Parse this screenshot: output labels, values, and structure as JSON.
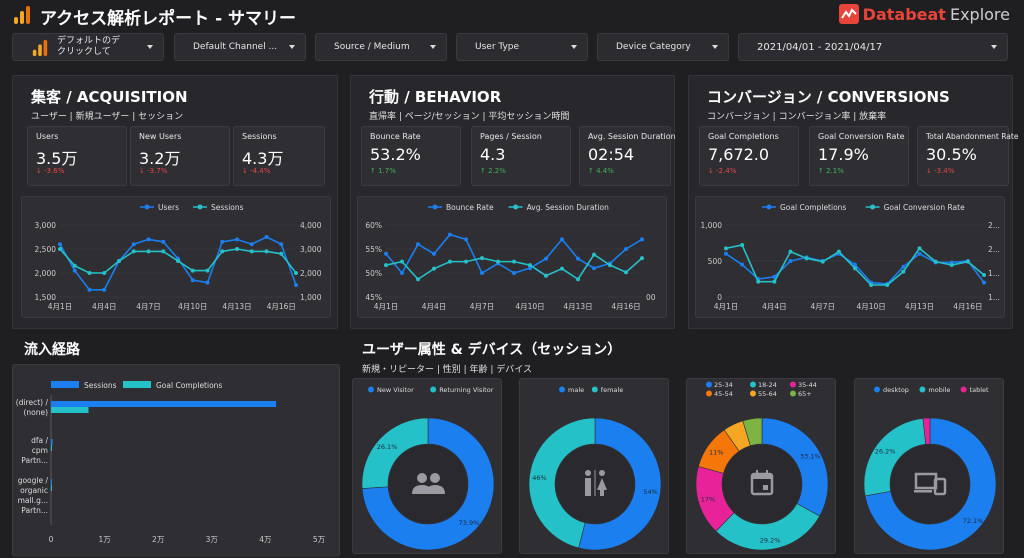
{
  "header": {
    "title": "アクセス解析レポート - サマリー",
    "brand_name": "Databeat",
    "brand_suffix": "Explore"
  },
  "filters": [
    {
      "label1": "デフォルトのデ",
      "label2": "クリックして"
    },
    {
      "label": "Default Channel ..."
    },
    {
      "label": "Source / Medium"
    },
    {
      "label": "User Type"
    },
    {
      "label": "Device Category"
    },
    {
      "label": "2021/04/01 - 2021/04/17"
    }
  ],
  "colors": {
    "blue": "#1b7ff0",
    "teal": "#25c1c8",
    "neg": "#e64848",
    "pos": "#41b25a",
    "accent": "#f5a623"
  },
  "acquisition": {
    "title": "集客 / ACQUISITION",
    "subtitle": "ユーザー | 新規ユーザー | セッション",
    "kpis": [
      {
        "label": "Users",
        "value": "3.5万",
        "delta": "-3.6%",
        "dir": "neg"
      },
      {
        "label": "New Users",
        "value": "3.2万",
        "delta": "-3.7%",
        "dir": "neg"
      },
      {
        "label": "Sessions",
        "value": "4.3万",
        "delta": "-4.4%",
        "dir": "neg"
      }
    ]
  },
  "behavior": {
    "title": "行動 / BEHAVIOR",
    "subtitle": "直帰率 | ページ/セッション | 平均セッション時間",
    "kpis": [
      {
        "label": "Bounce Rate",
        "value": "53.2%",
        "delta": "1.7%",
        "dir": "pos"
      },
      {
        "label": "Pages / Session",
        "value": "4.3",
        "delta": "2.2%",
        "dir": "pos"
      },
      {
        "label": "Avg. Session Duration",
        "value": "02:54",
        "delta": "4.4%",
        "dir": "pos"
      }
    ]
  },
  "conversions": {
    "title": "コンバージョン / CONVERSIONS",
    "subtitle": "コンバージョン | コンバージョン率 | 放棄率",
    "kpis": [
      {
        "label": "Goal Completions",
        "value": "7,672.0",
        "delta": "-2.4%",
        "dir": "neg"
      },
      {
        "label": "Goal Conversion Rate",
        "value": "17.9%",
        "delta": "2.1%",
        "dir": "pos"
      },
      {
        "label": "Total Abandonment Rate",
        "value": "30.5%",
        "delta": "-3.4%",
        "dir": "neg"
      }
    ]
  },
  "traffic": {
    "title": "流入経路"
  },
  "demographics": {
    "title": "ユーザー属性 & デバイス（セッション）",
    "subtitle": "新規・リピーター | 性別 | 年齢 | デバイス"
  },
  "chart_data": [
    {
      "id": "acq",
      "type": "line",
      "x": [
        "4月1日",
        "4月2日",
        "4月3日",
        "4月4日",
        "4月5日",
        "4月6日",
        "4月7日",
        "4月8日",
        "4月9日",
        "4月10日",
        "4月11日",
        "4月12日",
        "4月13日",
        "4月14日",
        "4月15日",
        "4月16日",
        "4月17日"
      ],
      "x_ticks": [
        "4月1日",
        "4月4日",
        "4月7日",
        "4月10日",
        "4月13日",
        "4月16日"
      ],
      "series": [
        {
          "name": "Users",
          "axis": "left",
          "values": [
            2600,
            2050,
            1650,
            1650,
            2250,
            2600,
            2700,
            2650,
            2300,
            1850,
            1800,
            2650,
            2700,
            2600,
            2750,
            2600,
            1750
          ]
        },
        {
          "name": "Sessions",
          "axis": "right",
          "values": [
            3000,
            2300,
            2000,
            2000,
            2500,
            2900,
            2900,
            2900,
            2500,
            2100,
            2100,
            2900,
            3000,
            2900,
            2900,
            2800,
            2000
          ]
        }
      ],
      "ylim_left": [
        1500,
        3000
      ],
      "yticks_left": [
        "3,000",
        "2,500",
        "2,000",
        "1,500"
      ],
      "ylim_right": [
        1000,
        4000
      ],
      "yticks_right": [
        "4,000",
        "3,000",
        "2,000",
        "1,000"
      ]
    },
    {
      "id": "beh",
      "type": "line",
      "x": [
        "4月1日",
        "4月2日",
        "4月3日",
        "4月4日",
        "4月5日",
        "4月6日",
        "4月7日",
        "4月8日",
        "4月9日",
        "4月10日",
        "4月11日",
        "4月12日",
        "4月13日",
        "4月14日",
        "4月15日",
        "4月16日",
        "4月17日"
      ],
      "x_ticks": [
        "4月1日",
        "4月4日",
        "4月7日",
        "4月10日",
        "4月13日",
        "4月16日"
      ],
      "series": [
        {
          "name": "Bounce Rate",
          "axis": "left",
          "values": [
            54,
            50,
            56,
            54,
            58,
            57,
            50,
            52,
            50,
            51,
            53,
            57,
            53,
            51,
            52,
            55,
            57
          ]
        },
        {
          "name": "Avg. Session Duration",
          "axis": "right",
          "values": [
            0.55,
            0.56,
            0.51,
            0.54,
            0.56,
            0.56,
            0.57,
            0.56,
            0.56,
            0.55,
            0.52,
            0.54,
            0.51,
            0.58,
            0.55,
            0.53,
            0.57
          ]
        }
      ],
      "ylim_left": [
        45,
        60
      ],
      "yticks_left": [
        "60%",
        "55%",
        "50%",
        "45%"
      ],
      "yticks_right": [
        "00"
      ]
    },
    {
      "id": "conv",
      "type": "line",
      "x": [
        "4月1日",
        "4月2日",
        "4月3日",
        "4月4日",
        "4月5日",
        "4月6日",
        "4月7日",
        "4月8日",
        "4月9日",
        "4月10日",
        "4月11日",
        "4月12日",
        "4月13日",
        "4月14日",
        "4月15日",
        "4月16日",
        "4月17日"
      ],
      "x_ticks": [
        "4月1日",
        "4月4日",
        "4月7日",
        "4月10日",
        "4月13日",
        "4月16日"
      ],
      "series": [
        {
          "name": "Goal Completions",
          "axis": "left",
          "values": [
            600,
            450,
            250,
            280,
            500,
            550,
            500,
            600,
            450,
            200,
            180,
            420,
            600,
            480,
            480,
            500,
            200
          ]
        },
        {
          "name": "Goal Conversion Rate",
          "axis": "right",
          "values": [
            0.7,
            0.75,
            0.2,
            0.2,
            0.65,
            0.55,
            0.5,
            0.65,
            0.4,
            0.15,
            0.15,
            0.35,
            0.7,
            0.5,
            0.45,
            0.5,
            0.3
          ]
        }
      ],
      "ylim_left": [
        0,
        1000
      ],
      "yticks_left": [
        "1,000",
        "500",
        "0"
      ],
      "yticks_right": [
        "2...",
        "2...",
        "1...",
        "1..."
      ]
    },
    {
      "id": "traffic",
      "type": "bar",
      "orientation": "horizontal",
      "categories": [
        "(direct) / (none)",
        "dfa / cpm Partn...",
        "google / organic mall.g... Partn..."
      ],
      "series": [
        {
          "name": "Sessions",
          "values": [
            42000,
            300,
            100
          ]
        },
        {
          "name": "Goal Completions",
          "values": [
            7000,
            100,
            50
          ]
        }
      ],
      "xlim": [
        0,
        50000
      ],
      "xticks": [
        "0",
        "1万",
        "2万",
        "3万",
        "4万",
        "5万"
      ]
    },
    {
      "id": "usertype",
      "type": "pie",
      "legend": [
        "New Visitor",
        "Returning Visitor"
      ],
      "values": [
        73.9,
        26.1
      ],
      "labels": [
        "73.9%",
        "26.1%"
      ]
    },
    {
      "id": "gender",
      "type": "pie",
      "legend": [
        "male",
        "female"
      ],
      "values": [
        54,
        46
      ],
      "labels": [
        "54%",
        "46%"
      ]
    },
    {
      "id": "age",
      "type": "pie",
      "legend": [
        "25-34",
        "18-24",
        "35-44",
        "45-54",
        "55-64",
        "65+"
      ],
      "values": [
        33.1,
        29.2,
        17,
        11,
        5,
        4.7
      ],
      "labels": [
        "33.1%",
        "29.2%",
        "17%",
        "11%",
        "",
        ""
      ]
    },
    {
      "id": "device",
      "type": "pie",
      "legend": [
        "desktop",
        "mobile",
        "tablet"
      ],
      "values": [
        72.1,
        26.2,
        1.7
      ],
      "labels": [
        "72.1%",
        "26.2%",
        ""
      ]
    }
  ]
}
